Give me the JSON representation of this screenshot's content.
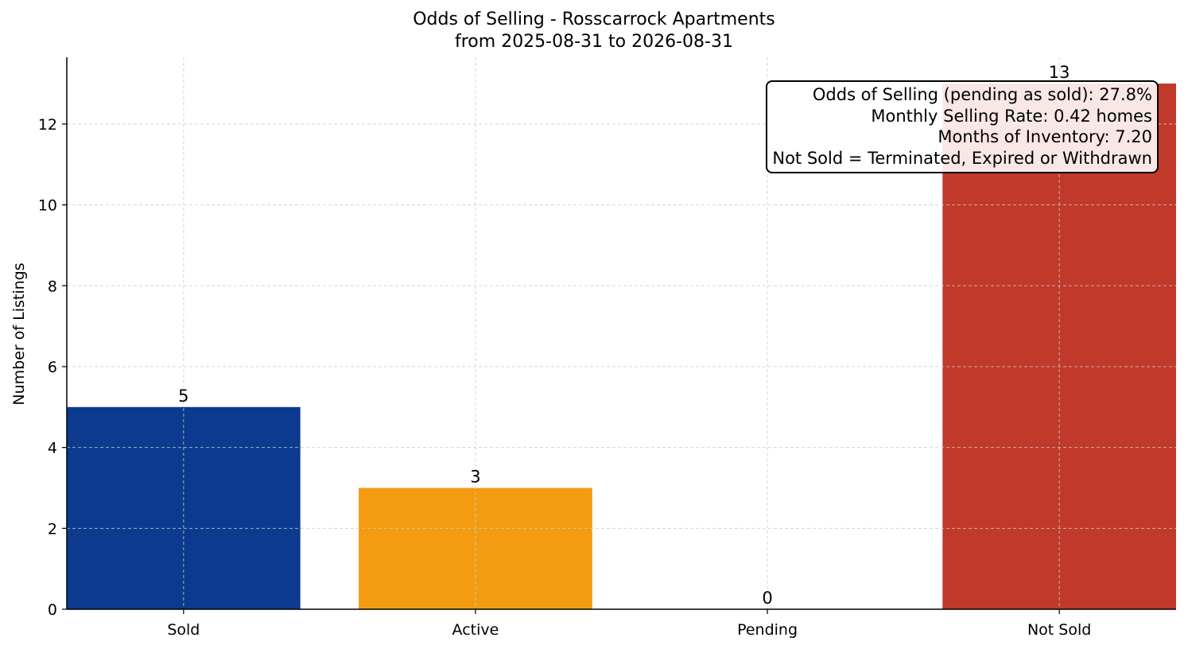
{
  "chart_data": {
    "type": "bar",
    "title": "Odds of Selling - Rosscarrock Apartments",
    "subtitle": "from 2025-08-31 to 2026-08-31",
    "xlabel": "",
    "ylabel": "Number of Listings",
    "categories": [
      "Sold",
      "Active",
      "Pending",
      "Not Sold"
    ],
    "values": [
      5,
      3,
      0,
      13
    ],
    "colors": [
      "#0b3a8f",
      "#f39c12",
      "#27ae60",
      "#c0392b"
    ],
    "ylim": [
      0,
      13.65
    ],
    "yticks": [
      0,
      2,
      4,
      6,
      8,
      10,
      12
    ],
    "grid": true,
    "annotation": [
      "Odds of Selling (pending as sold): 27.8%",
      "Monthly Selling Rate: 0.42 homes",
      "Months of Inventory: 7.20",
      "Not Sold = Terminated, Expired or Withdrawn"
    ]
  }
}
